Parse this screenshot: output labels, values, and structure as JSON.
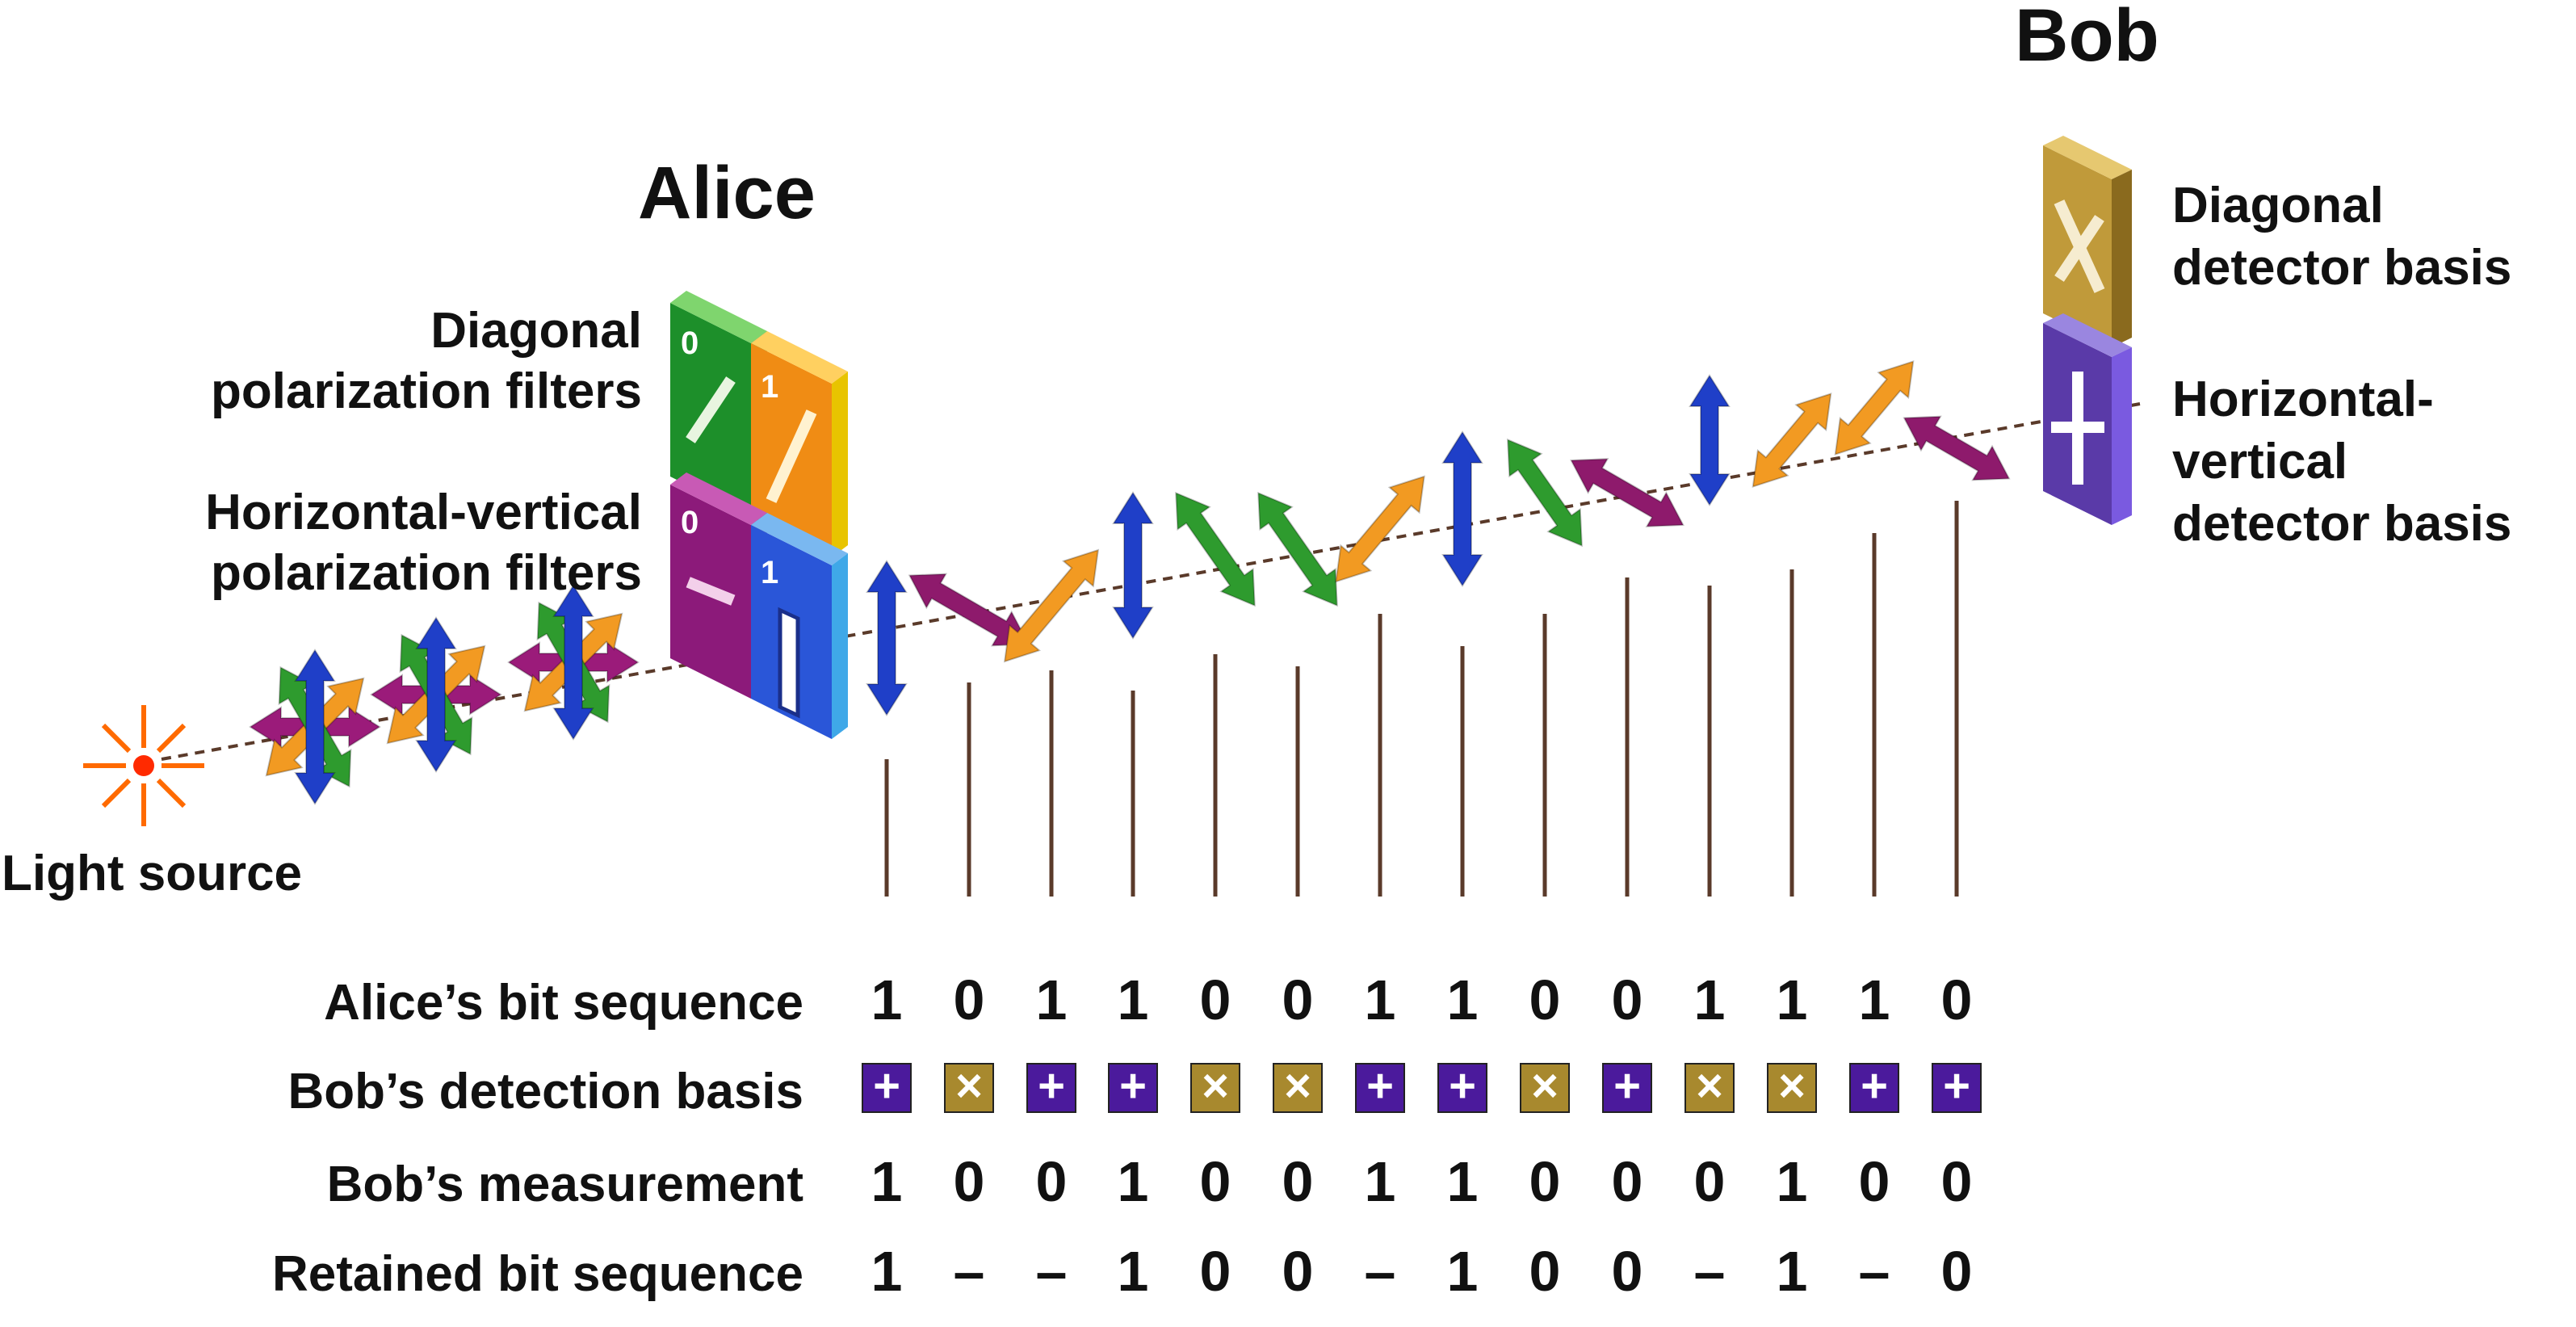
{
  "labels": {
    "alice": "Alice",
    "bob": "Bob",
    "light_source": "Light source",
    "alice_diag_filters": [
      "Diagonal",
      "polarization filters"
    ],
    "alice_hv_filters": [
      "Horizontal-vertical",
      "polarization filters"
    ],
    "bob_diag_basis": [
      "Diagonal",
      "detector basis"
    ],
    "bob_hv_basis": [
      "Horizontal-",
      "vertical",
      "detector basis"
    ]
  },
  "filters": {
    "diag_zero": "0",
    "diag_one": "1",
    "hv_zero": "0",
    "hv_one": "1"
  },
  "rows": [
    {
      "label": "Alice’s bit sequence",
      "type": "text",
      "values": [
        "1",
        "0",
        "1",
        "1",
        "0",
        "0",
        "1",
        "1",
        "0",
        "0",
        "1",
        "1",
        "1",
        "0"
      ]
    },
    {
      "label": "Bob’s detection basis",
      "type": "basis",
      "values": [
        "+",
        "×",
        "+",
        "+",
        "×",
        "×",
        "+",
        "+",
        "×",
        "+",
        "×",
        "×",
        "+",
        "+"
      ]
    },
    {
      "label": "Bob’s measurement",
      "type": "text",
      "values": [
        "1",
        "0",
        "0",
        "1",
        "0",
        "0",
        "1",
        "1",
        "0",
        "0",
        "0",
        "1",
        "0",
        "0"
      ]
    },
    {
      "label": "Retained bit sequence",
      "type": "text",
      "values": [
        "1",
        "–",
        "–",
        "1",
        "0",
        "0",
        "–",
        "1",
        "0",
        "0",
        "–",
        "1",
        "–",
        "0"
      ]
    }
  ],
  "photons": [
    "vertical",
    "anti-diagonal",
    "diagonal",
    "vertical",
    "anti-diagonal",
    "anti-diagonal",
    "diagonal",
    "vertical",
    "anti-diagonal",
    "anti-diagonal",
    "vertical",
    "diagonal",
    "diagonal",
    "anti-diagonal"
  ],
  "colors": {
    "vertical": "#1f3fc8",
    "horizontal": "#9b1b7a",
    "diagonal": "#f29a22",
    "anti_diagonal": "#2e9b2e",
    "anti_diagonal_purple": "#8e1a6c",
    "hv_basis": "#4b1a9c",
    "diag_basis": "#a8892e",
    "beam": "#5a3a2a",
    "light": "#ff6a00"
  }
}
